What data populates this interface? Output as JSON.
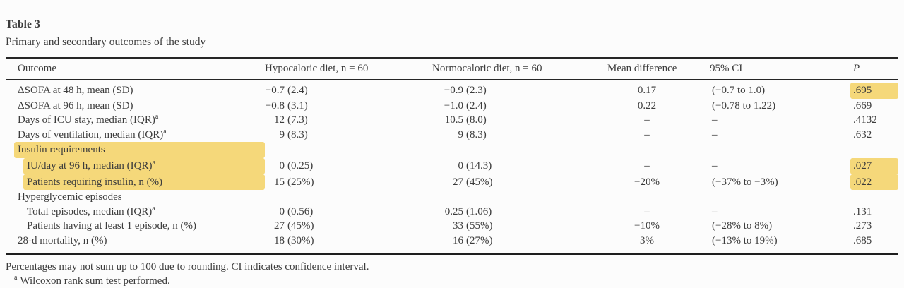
{
  "colors": {
    "highlight": "#f5d87a"
  },
  "title": "Table 3",
  "subtitle": "Primary and secondary outcomes of the study",
  "table": {
    "columns": [
      "Outcome",
      "Hypocaloric diet, n = 60",
      "Normocaloric diet, n = 60",
      "Mean difference",
      "95% CI",
      "P"
    ],
    "rows": [
      {
        "label": "ΔSOFA at 48 h, mean (SD)",
        "sup": false,
        "indent": false,
        "label_highlight": false,
        "hypo": "−0.7 (2.4)",
        "normo": "−0.9 (2.3)",
        "diff": "0.17",
        "ci": "(−0.7 to 1.0)",
        "p": ".695",
        "p_highlight": true
      },
      {
        "label": "ΔSOFA at 96 h, mean (SD)",
        "sup": false,
        "indent": false,
        "label_highlight": false,
        "hypo": "−0.8 (3.1)",
        "normo": "−1.0 (2.4)",
        "diff": "0.22",
        "ci": "(−0.78 to 1.22)",
        "p": ".669",
        "p_highlight": false
      },
      {
        "label": "Days of ICU stay, median (IQR)",
        "sup": true,
        "indent": false,
        "label_highlight": false,
        "hypo": "12 (7.3)",
        "normo": "10.5 (8.0)",
        "diff": "–",
        "ci": "–",
        "p": ".4132",
        "p_highlight": false
      },
      {
        "label": "Days of ventilation, median (IQR)",
        "sup": true,
        "indent": false,
        "label_highlight": false,
        "hypo": "9 (8.3)",
        "normo": "9 (8.3)",
        "diff": "–",
        "ci": "–",
        "p": ".632",
        "p_highlight": false
      },
      {
        "label": "Insulin requirements",
        "sup": false,
        "indent": false,
        "label_highlight": true,
        "hypo": "",
        "normo": "",
        "diff": "",
        "ci": "",
        "p": "",
        "p_highlight": false
      },
      {
        "label": "IU/day at 96 h, median (IQR)",
        "sup": true,
        "indent": true,
        "label_highlight": true,
        "hypo": "0 (0.25)",
        "normo": "0 (14.3)",
        "diff": "–",
        "ci": "–",
        "p": ".027",
        "p_highlight": true
      },
      {
        "label": "Patients requiring insulin, n (%)",
        "sup": false,
        "indent": true,
        "label_highlight": true,
        "hypo": "15 (25%)",
        "normo": "27 (45%)",
        "diff": "−20%",
        "ci": "(−37% to −3%)",
        "p": ".022",
        "p_highlight": true
      },
      {
        "label": "Hyperglycemic episodes",
        "sup": false,
        "indent": false,
        "label_highlight": false,
        "hypo": "",
        "normo": "",
        "diff": "",
        "ci": "",
        "p": "",
        "p_highlight": false
      },
      {
        "label": "Total episodes, median (IQR)",
        "sup": true,
        "indent": true,
        "label_highlight": false,
        "hypo": "0 (0.56)",
        "normo": "0.25 (1.06)",
        "diff": "–",
        "ci": "–",
        "p": ".131",
        "p_highlight": false
      },
      {
        "label": "Patients having at least 1 episode, n (%)",
        "sup": false,
        "indent": true,
        "label_highlight": false,
        "hypo": "27 (45%)",
        "normo": "33 (55%)",
        "diff": "−10%",
        "ci": "(−28% to 8%)",
        "p": ".273",
        "p_highlight": false
      },
      {
        "label": "28-d mortality, n (%)",
        "sup": false,
        "indent": false,
        "label_highlight": false,
        "hypo": "18 (30%)",
        "normo": "16 (27%)",
        "diff": "3%",
        "ci": "(−13% to 19%)",
        "p": ".685",
        "p_highlight": false
      }
    ],
    "sup_marker": "a"
  },
  "footnotes": {
    "general": "Percentages may not sum up to 100 due to rounding. CI indicates confidence interval.",
    "a_marker": "a",
    "a_text": "Wilcoxon rank sum test performed."
  }
}
